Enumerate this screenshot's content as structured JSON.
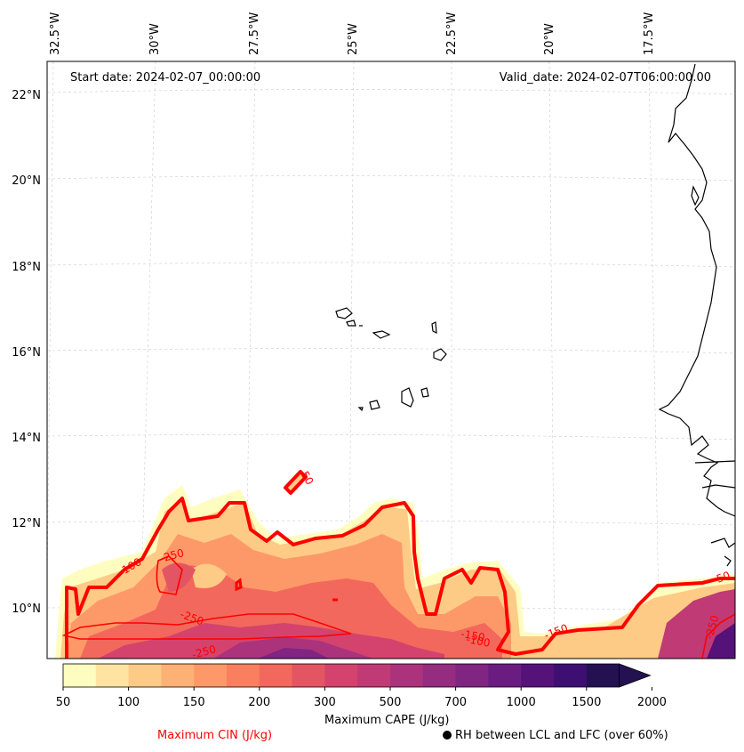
{
  "header": {
    "start_date": "Start date: 2024-02-07_00:00:00",
    "valid_date": "Valid_date: 2024-02-07T06:00:00.00"
  },
  "axes": {
    "lon_labels": [
      "32.5°W",
      "30°W",
      "27.5°W",
      "25°W",
      "22.5°W",
      "20°W",
      "17.5°W"
    ],
    "lat_labels": [
      "22°N",
      "20°N",
      "18°N",
      "16°N",
      "14°N",
      "12°N",
      "10°N"
    ]
  },
  "colorbar": {
    "ticks": [
      "50",
      "100",
      "150",
      "200",
      "300",
      "500",
      "700",
      "1000",
      "1500",
      "2000"
    ],
    "label": "Maximum CAPE (J/kg)",
    "colors": [
      "#fefdbf",
      "#fee4a0",
      "#fecb87",
      "#feb174",
      "#fd9968",
      "#fa7f5e",
      "#f3685c",
      "#e45563",
      "#d3436e",
      "#c03a76",
      "#ab337c",
      "#952c80",
      "#802582",
      "#6a1c81",
      "#551278",
      "#3d0f72",
      "#231151"
    ]
  },
  "legend": {
    "cin_label": "Maximum CIN (J/kg)",
    "rh_label": "RH between LCL and LFC (over 60%)",
    "cin_color": "#ff0000"
  },
  "cin_contour_labels": [
    "50",
    "-250",
    "-100",
    "-250",
    "-250",
    "-150",
    "-100",
    "-150",
    "-250",
    "50"
  ]
}
